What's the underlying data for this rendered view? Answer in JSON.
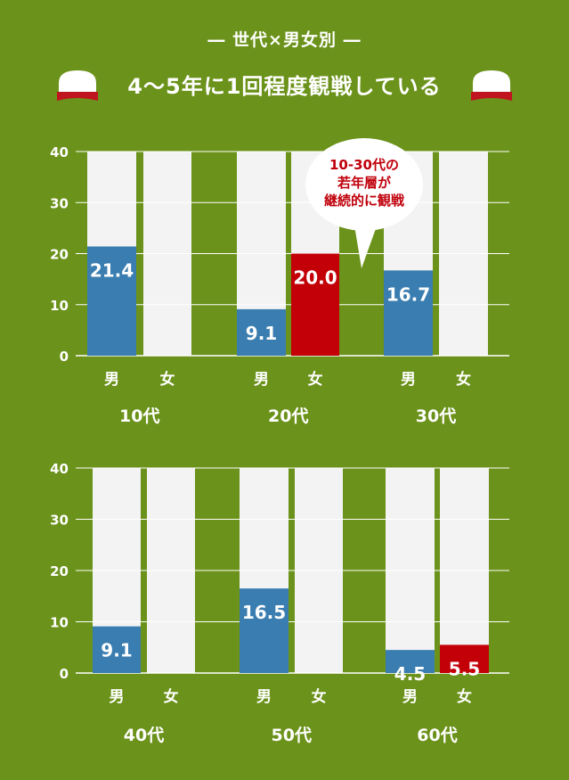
{
  "header": {
    "subtitle": "― 世代×男女別 ―",
    "title": "4〜5年に1回程度観戦している"
  },
  "callout": {
    "lines": [
      "10-30代の",
      "若年層が",
      "継続的に観戦"
    ]
  },
  "colors": {
    "background": "#6b921a",
    "male": "#3a7db0",
    "female_highlight": "#c30008",
    "track": "#f3f3f3",
    "grid": "#ffffff",
    "text": "#ffffff"
  },
  "chart_data": [
    {
      "type": "bar",
      "title": "",
      "xlabel": "",
      "ylabel": "",
      "ylim": [
        0,
        40
      ],
      "yticks": [
        "0",
        "10",
        "20",
        "30",
        "40"
      ],
      "grid": true,
      "groups": [
        {
          "label": "10代",
          "bars": [
            {
              "label": "男",
              "value": 21.4,
              "value_label": "21.4",
              "color": "#3a7db0"
            },
            {
              "label": "女",
              "value": 0,
              "value_label": "",
              "color": "#3a7db0"
            }
          ]
        },
        {
          "label": "20代",
          "bars": [
            {
              "label": "男",
              "value": 9.1,
              "value_label": "9.1",
              "color": "#3a7db0"
            },
            {
              "label": "女",
              "value": 20.0,
              "value_label": "20.0",
              "color": "#c30008"
            }
          ]
        },
        {
          "label": "30代",
          "bars": [
            {
              "label": "男",
              "value": 16.7,
              "value_label": "16.7",
              "color": "#3a7db0"
            },
            {
              "label": "女",
              "value": 0,
              "value_label": "",
              "color": "#3a7db0"
            }
          ]
        }
      ]
    },
    {
      "type": "bar",
      "title": "",
      "xlabel": "",
      "ylabel": "",
      "ylim": [
        0,
        40
      ],
      "yticks": [
        "0",
        "10",
        "20",
        "30",
        "40"
      ],
      "grid": true,
      "groups": [
        {
          "label": "40代",
          "bars": [
            {
              "label": "男",
              "value": 9.1,
              "value_label": "9.1",
              "color": "#3a7db0"
            },
            {
              "label": "女",
              "value": 0,
              "value_label": "",
              "color": "#3a7db0"
            }
          ]
        },
        {
          "label": "50代",
          "bars": [
            {
              "label": "男",
              "value": 16.5,
              "value_label": "16.5",
              "color": "#3a7db0"
            },
            {
              "label": "女",
              "value": 0,
              "value_label": "",
              "color": "#3a7db0"
            }
          ]
        },
        {
          "label": "60代",
          "bars": [
            {
              "label": "男",
              "value": 4.5,
              "value_label": "4.5",
              "color": "#3a7db0"
            },
            {
              "label": "女",
              "value": 5.5,
              "value_label": "5.5",
              "color": "#c30008"
            }
          ]
        }
      ]
    }
  ]
}
